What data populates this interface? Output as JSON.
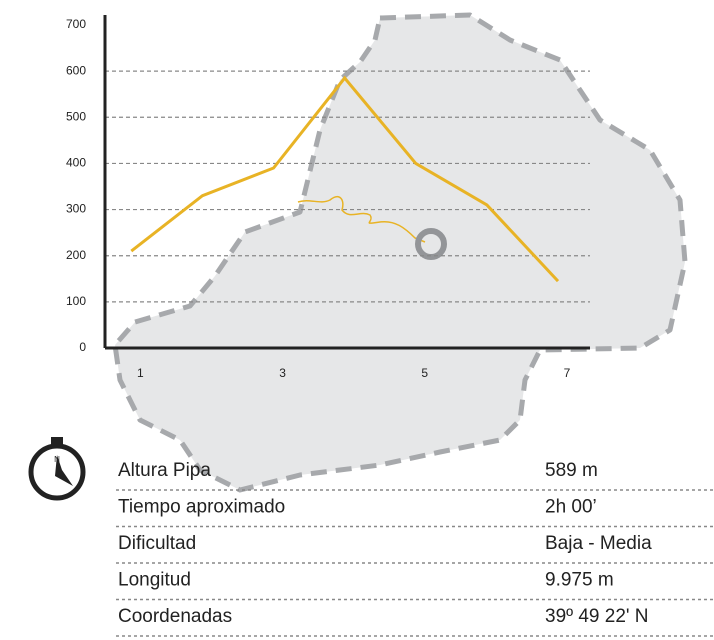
{
  "chart_data": {
    "type": "line",
    "x": [
      1,
      2,
      3,
      4,
      5,
      6,
      7
    ],
    "values": [
      210,
      330,
      390,
      585,
      400,
      310,
      145
    ],
    "color": "#e8b325",
    "xlim": [
      0.63,
      7.45
    ],
    "xticks": [
      1,
      3,
      5,
      7
    ],
    "ylim": [
      0,
      700
    ],
    "yticks": [
      0,
      100,
      200,
      300,
      400,
      500,
      600,
      700
    ],
    "grid": true
  },
  "table": {
    "rows": [
      [
        "Altura Pipa",
        "589 m"
      ],
      [
        "Tiempo aproximado",
        "2h 00’"
      ],
      [
        "Dificultad",
        "Baja - Media"
      ],
      [
        "Longitud",
        "9.975 m"
      ],
      [
        "Coordenadas",
        "39º 49 22' N"
      ]
    ]
  }
}
